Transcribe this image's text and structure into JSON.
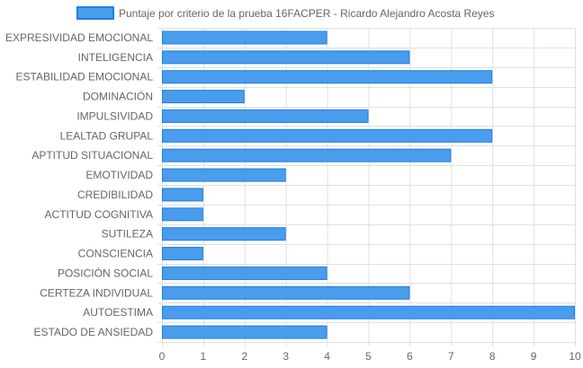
{
  "chart_data": {
    "type": "bar",
    "orientation": "horizontal",
    "categories": [
      "EXPRESIVIDAD EMOCIONAL",
      "INTELIGENCIA",
      "ESTABILIDAD EMOCIONAL",
      "DOMINACIÓN",
      "IMPULSIVIDAD",
      "LEALTAD GRUPAL",
      "APTITUD SITUACIONAL",
      "EMOTIVIDAD",
      "CREDIBILIDAD",
      "ACTITUD COGNITIVA",
      "SUTILEZA",
      "CONSCIENCIA",
      "POSICIÓN SOCIAL",
      "CERTEZA INDIVIDUAL",
      "AUTOESTIMA",
      "ESTADO DE ANSIEDAD"
    ],
    "series": [
      {
        "name": "Puntaje por criterio de la prueba 16FACPER - Ricardo Alejandro Acosta Reyes",
        "values": [
          4,
          6,
          8,
          2,
          5,
          8,
          7,
          3,
          1,
          1,
          3,
          1,
          4,
          6,
          10,
          4
        ]
      }
    ],
    "xlim": [
      0,
      10
    ],
    "x_ticks": [
      "0",
      "1",
      "2",
      "3",
      "4",
      "5",
      "6",
      "7",
      "8",
      "9",
      "10"
    ],
    "grid": true,
    "legend_position": "top",
    "colors": {
      "bar_fill": "#4a9cec",
      "bar_stroke": "#1f7fe0",
      "grid": "#e0e0e0",
      "text": "#666666"
    }
  }
}
